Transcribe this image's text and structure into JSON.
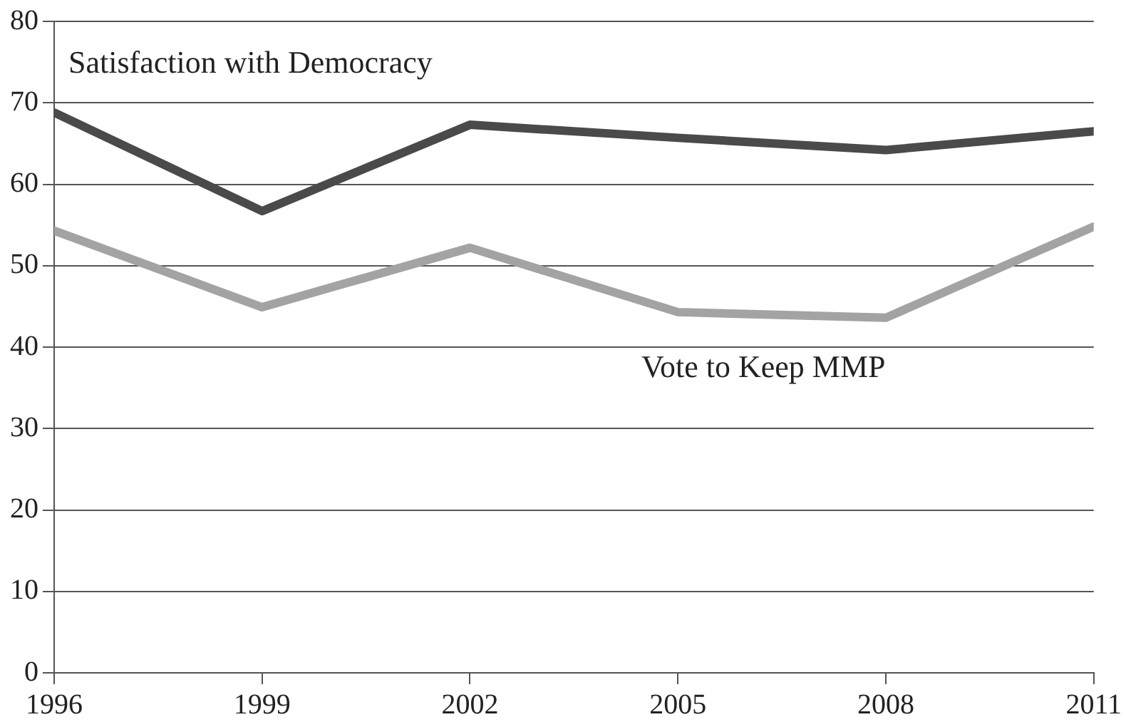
{
  "chart_data": {
    "type": "line",
    "x": [
      1996,
      1999,
      2002,
      2005,
      2008,
      2011
    ],
    "series": [
      {
        "name": "Satisfaction with Democracy",
        "color": "#4a4a4a",
        "values": [
          68.8,
          56.7,
          67.3,
          65.7,
          64.2,
          66.5
        ]
      },
      {
        "name": "Vote to Keep MMP",
        "color": "#a3a3a3",
        "values": [
          54.3,
          44.9,
          52.2,
          44.3,
          43.6,
          54.8
        ]
      }
    ],
    "xlim": [
      1996,
      2011
    ],
    "xticks": [
      1996,
      1999,
      2002,
      2005,
      2008,
      2011
    ],
    "ylim": [
      0,
      80
    ],
    "yticks": [
      0,
      10,
      20,
      30,
      40,
      50,
      60,
      70,
      80
    ],
    "grid": "y",
    "legend": false,
    "marker": "none",
    "line_style": "solid"
  }
}
